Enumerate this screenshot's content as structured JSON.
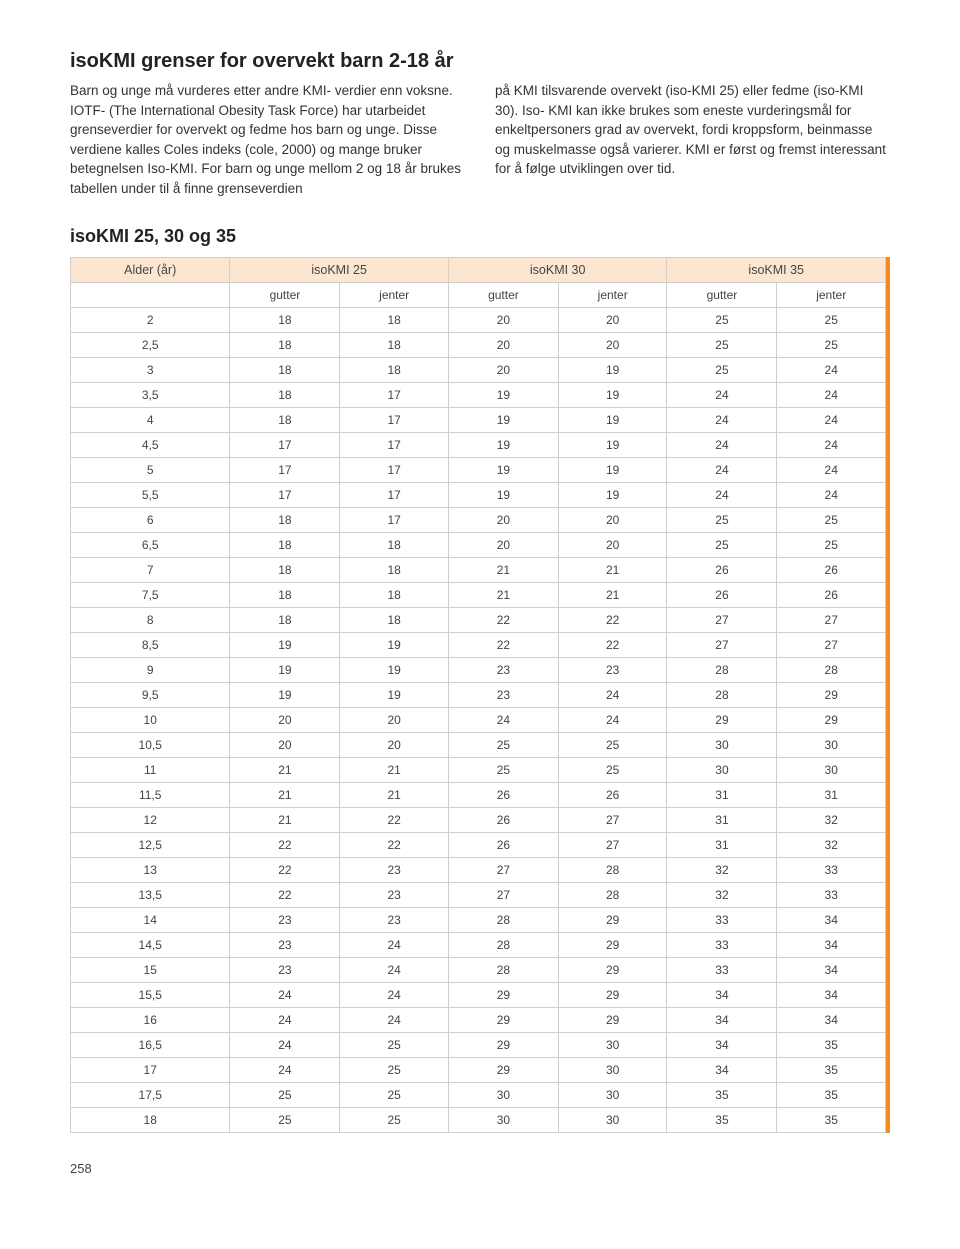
{
  "title": "isoKMI grenser for overvekt barn 2-18 år",
  "intro_left": "Barn og unge må vurderes etter andre KMI- verdier enn voksne. IOTF- (The International Obesity Task Force) har utarbeidet grenseverdier for overvekt og fedme hos barn og unge. Disse verdiene kalles Coles indeks (cole, 2000) og mange bruker betegnelsen Iso-KMI. For barn og unge mellom 2 og 18 år brukes tabellen under til å finne grenseverdien",
  "intro_right": "på KMI tilsvarende overvekt (iso-KMI 25) eller fedme (iso-KMI 30). Iso- KMI kan ikke brukes som eneste vurderingsmål for enkeltpersoners grad av overvekt, fordi kroppsform, beinmasse og muskelmasse også varierer. KMI er først og fremst interessant for å følge utviklingen over tid.",
  "table_title": "isoKMI 25, 30 og 35",
  "table": {
    "header_bg": "#fde6cf",
    "border_color": "#cfcfcf",
    "accent_color": "#f28c1e",
    "age_label": "Alder (år)",
    "groups": [
      "isoKMI 25",
      "isoKMI 30",
      "isoKMI 35"
    ],
    "sub": [
      "gutter",
      "jenter",
      "gutter",
      "jenter",
      "gutter",
      "jenter"
    ],
    "rows": [
      [
        "2",
        18,
        18,
        20,
        20,
        25,
        25
      ],
      [
        "2,5",
        18,
        18,
        20,
        20,
        25,
        25
      ],
      [
        "3",
        18,
        18,
        20,
        19,
        25,
        24
      ],
      [
        "3,5",
        18,
        17,
        19,
        19,
        24,
        24
      ],
      [
        "4",
        18,
        17,
        19,
        19,
        24,
        24
      ],
      [
        "4,5",
        17,
        17,
        19,
        19,
        24,
        24
      ],
      [
        "5",
        17,
        17,
        19,
        19,
        24,
        24
      ],
      [
        "5,5",
        17,
        17,
        19,
        19,
        24,
        24
      ],
      [
        "6",
        18,
        17,
        20,
        20,
        25,
        25
      ],
      [
        "6,5",
        18,
        18,
        20,
        20,
        25,
        25
      ],
      [
        "7",
        18,
        18,
        21,
        21,
        26,
        26
      ],
      [
        "7,5",
        18,
        18,
        21,
        21,
        26,
        26
      ],
      [
        "8",
        18,
        18,
        22,
        22,
        27,
        27
      ],
      [
        "8,5",
        19,
        19,
        22,
        22,
        27,
        27
      ],
      [
        "9",
        19,
        19,
        23,
        23,
        28,
        28
      ],
      [
        "9,5",
        19,
        19,
        23,
        24,
        28,
        29
      ],
      [
        "10",
        20,
        20,
        24,
        24,
        29,
        29
      ],
      [
        "10,5",
        20,
        20,
        25,
        25,
        30,
        30
      ],
      [
        "11",
        21,
        21,
        25,
        25,
        30,
        30
      ],
      [
        "11,5",
        21,
        21,
        26,
        26,
        31,
        31
      ],
      [
        "12",
        21,
        22,
        26,
        27,
        31,
        32
      ],
      [
        "12,5",
        22,
        22,
        26,
        27,
        31,
        32
      ],
      [
        "13",
        22,
        23,
        27,
        28,
        32,
        33
      ],
      [
        "13,5",
        22,
        23,
        27,
        28,
        32,
        33
      ],
      [
        "14",
        23,
        23,
        28,
        29,
        33,
        34
      ],
      [
        "14,5",
        23,
        24,
        28,
        29,
        33,
        34
      ],
      [
        "15",
        23,
        24,
        28,
        29,
        33,
        34
      ],
      [
        "15,5",
        24,
        24,
        29,
        29,
        34,
        34
      ],
      [
        "16",
        24,
        24,
        29,
        29,
        34,
        34
      ],
      [
        "16,5",
        24,
        25,
        29,
        30,
        34,
        35
      ],
      [
        "17",
        24,
        25,
        29,
        30,
        34,
        35
      ],
      [
        "17,5",
        25,
        25,
        30,
        30,
        35,
        35
      ],
      [
        "18",
        25,
        25,
        30,
        30,
        35,
        35
      ]
    ]
  },
  "page_number": "258"
}
